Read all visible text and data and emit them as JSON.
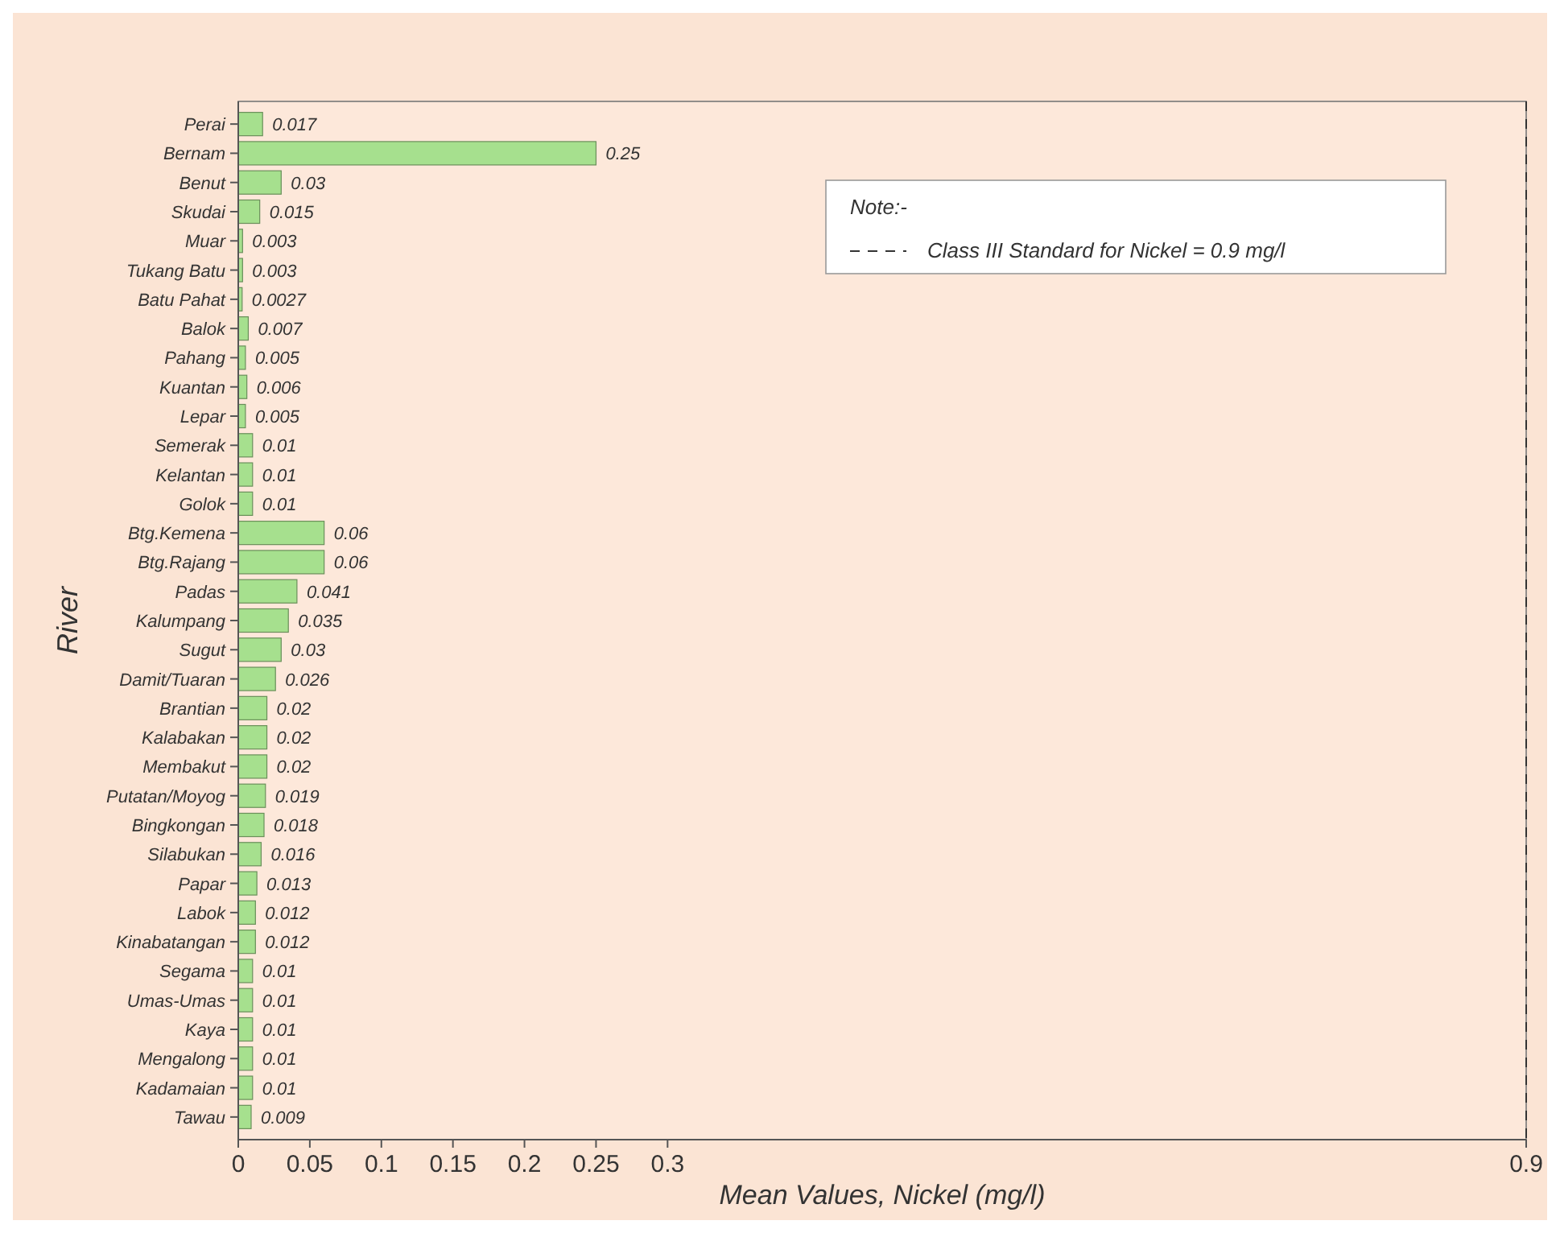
{
  "chart_data": {
    "type": "bar",
    "orientation": "horizontal",
    "xlabel": "Mean Values, Nickel (mg/l)",
    "ylabel": "River",
    "categories": [
      "Perai",
      "Bernam",
      "Benut",
      "Skudai",
      "Muar",
      "Tukang Batu",
      "Batu Pahat",
      "Balok",
      "Pahang",
      "Kuantan",
      "Lepar",
      "Semerak",
      "Kelantan",
      "Golok",
      "Btg.Kemena",
      "Btg.Rajang",
      "Padas",
      "Kalumpang",
      "Sugut",
      "Damit/Tuaran",
      "Brantian",
      "Kalabakan",
      "Membakut",
      "Putatan/Moyog",
      "Bingkongan",
      "Silabukan",
      "Papar",
      "Labok",
      "Kinabatangan",
      "Segama",
      "Umas-Umas",
      "Kaya",
      "Mengalong",
      "Kadamaian",
      "Tawau"
    ],
    "values": [
      0.017,
      0.25,
      0.03,
      0.015,
      0.003,
      0.003,
      0.0027,
      0.007,
      0.005,
      0.006,
      0.005,
      0.01,
      0.01,
      0.01,
      0.06,
      0.06,
      0.041,
      0.035,
      0.03,
      0.026,
      0.02,
      0.02,
      0.02,
      0.019,
      0.018,
      0.016,
      0.013,
      0.012,
      0.012,
      0.01,
      0.01,
      0.01,
      0.01,
      0.01,
      0.009
    ],
    "color": "#a6e08e",
    "data_labels": true,
    "xlim": [
      0,
      0.9
    ],
    "xticks": [
      0,
      0.05,
      0.1,
      0.15,
      0.2,
      0.25,
      0.3,
      0.9
    ],
    "ref_lines": [
      {
        "axis": "x",
        "value": 0.9,
        "label": "Class III Standard for Nickel = 0.9 mg/l",
        "line_style": "dashed",
        "color": "#333333"
      }
    ],
    "annotations": [
      "Note:-"
    ]
  }
}
